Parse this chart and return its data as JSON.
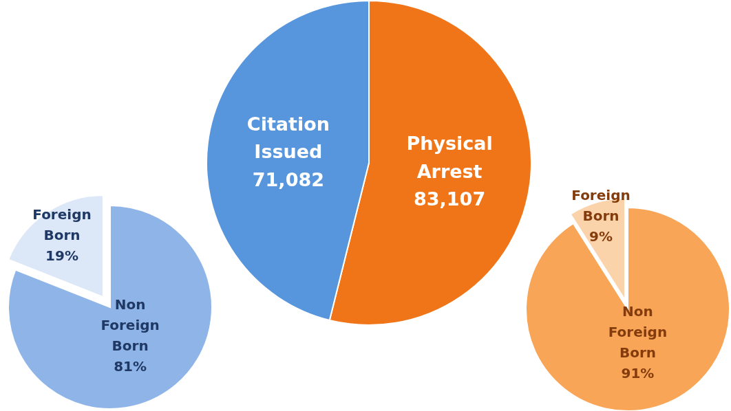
{
  "chart_data": [
    {
      "type": "pie",
      "categories": [
        "Non Foreign Born",
        "Foreign Born"
      ],
      "values": [
        81,
        19
      ],
      "value_labels": [
        "81%",
        "19%"
      ],
      "colors": [
        "#8fb5e8",
        "#dce8f8"
      ]
    },
    {
      "type": "pie",
      "categories": [
        "Physical Arrest",
        "Citation Issued"
      ],
      "values": [
        83107,
        71082
      ],
      "value_labels": [
        "83,107",
        "71,082"
      ],
      "colors": [
        "#f07518",
        "#5796dc"
      ]
    },
    {
      "type": "pie",
      "categories": [
        "Non Foreign Born",
        "Foreign Born"
      ],
      "values": [
        91,
        9
      ],
      "value_labels": [
        "91%",
        "9%"
      ],
      "colors": [
        "#f9a558",
        "#fbd3aa"
      ]
    }
  ]
}
